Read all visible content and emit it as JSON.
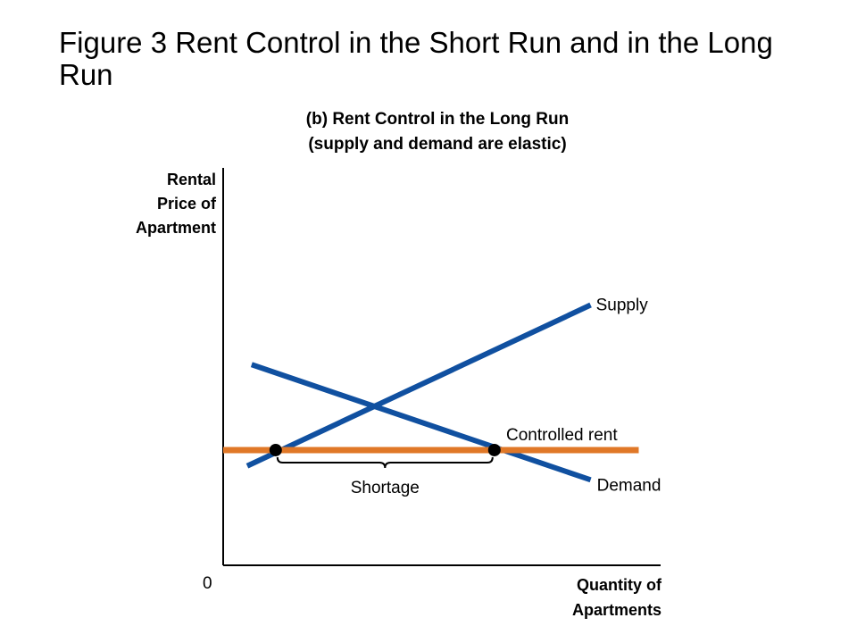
{
  "title": "Figure 3 Rent Control in the Short Run and in the Long Run",
  "chart_data": {
    "type": "line",
    "subtitle_lines": [
      "(b) Rent Control in the Long Run",
      "(supply and demand are elastic)"
    ],
    "ylabel_lines": [
      "Rental",
      "Price of",
      "Apartment"
    ],
    "xlabel_lines": [
      "Quantity of",
      "Apartments"
    ],
    "origin_label": "0",
    "xlim": [
      0,
      10
    ],
    "ylim": [
      0,
      10
    ],
    "grid": false,
    "series": [
      {
        "name": "Supply",
        "color": "#1050a0",
        "x": [
          0.55,
          8.4
        ],
        "y": [
          2.5,
          6.55
        ]
      },
      {
        "name": "Demand",
        "color": "#1050a0",
        "x": [
          0.65,
          8.4
        ],
        "y": [
          5.05,
          2.15
        ]
      }
    ],
    "controlled_rent": {
      "label": "Controlled rent",
      "y": 2.9,
      "x_range": [
        0,
        9.5
      ],
      "color": "#e07828"
    },
    "points": [
      {
        "x": 1.2,
        "y": 2.9
      },
      {
        "x": 6.2,
        "y": 2.9
      }
    ],
    "shortage": {
      "label": "Shortage",
      "x_range": [
        1.2,
        6.2
      ]
    }
  }
}
